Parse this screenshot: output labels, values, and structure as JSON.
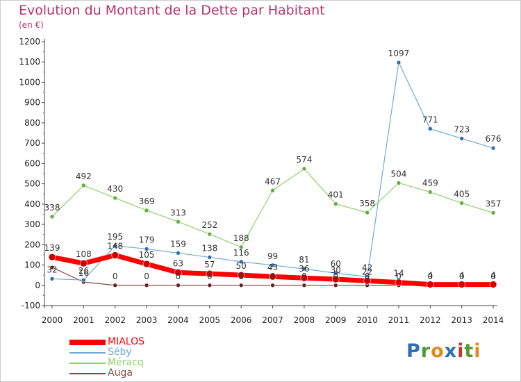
{
  "header": {
    "title": "Evolution du Montant de la Dette par Habitant",
    "subtitle": "(en €)"
  },
  "logo": {
    "text": "Proxiti",
    "letters": [
      {
        "ch": "P",
        "color": "#2b6fb6"
      },
      {
        "ch": "r",
        "color": "#4e9a34"
      },
      {
        "ch": "o",
        "color": "#e08a1e"
      },
      {
        "ch": "x",
        "color": "#2b6fb6"
      },
      {
        "ch": "i",
        "color": "#c0392b"
      },
      {
        "ch": "t",
        "color": "#4e9a34"
      },
      {
        "ch": "i",
        "color": "#e08a1e"
      }
    ]
  },
  "chart_data": {
    "type": "line",
    "title": "Evolution du Montant de la Dette par Habitant",
    "subtitle": "(en €)",
    "xlabel": "",
    "ylabel": "",
    "x": [
      2000,
      2001,
      2002,
      2003,
      2004,
      2005,
      2006,
      2007,
      2008,
      2009,
      2010,
      2011,
      2012,
      2013,
      2014
    ],
    "ylim": [
      -100,
      1200
    ],
    "yticks": [
      -100,
      0,
      100,
      200,
      300,
      400,
      500,
      600,
      700,
      800,
      900,
      1000,
      1100,
      1200
    ],
    "grid": false,
    "legend_position": "bottom-left",
    "series": [
      {
        "name": "MIALOS",
        "color": "#ff0000",
        "marker_color": "#cc0000",
        "line_width": 7,
        "values": [
          139,
          108,
          148,
          105,
          63,
          57,
          50,
          43,
          36,
          30,
          22,
          14,
          4,
          4,
          4
        ],
        "labels": [
          "139",
          "108",
          "148",
          "105",
          "63",
          "57",
          "50",
          "43",
          "36",
          "30",
          "22",
          "14",
          "4",
          "4",
          "4"
        ]
      },
      {
        "name": "Séby",
        "color": "#6fa8d6",
        "marker_color": "#2f6fb0",
        "line_width": 1.2,
        "values": [
          32,
          26,
          195,
          179,
          159,
          138,
          116,
          99,
          81,
          60,
          42,
          1097,
          771,
          723,
          676
        ],
        "labels": [
          "32",
          "26",
          "195",
          "179",
          "159",
          "138",
          "116",
          "99",
          "81",
          "60",
          "42",
          "1097",
          "771",
          "723",
          "676"
        ]
      },
      {
        "name": "Méracq",
        "color": "#8fd16a",
        "marker_color": "#5fb03a",
        "line_width": 1.2,
        "values": [
          338,
          492,
          430,
          369,
          313,
          252,
          188,
          467,
          574,
          401,
          358,
          504,
          459,
          405,
          357
        ],
        "labels": [
          "338",
          "492",
          "430",
          "369",
          "313",
          "252",
          "188",
          "467",
          "574",
          "401",
          "358",
          "504",
          "459",
          "405",
          "357"
        ]
      },
      {
        "name": "Auga",
        "color": "#8a4a4a",
        "marker_color": "#6b1f1f",
        "line_width": 1.2,
        "values": [
          88,
          16,
          0,
          0,
          0,
          0,
          0,
          0,
          0,
          0,
          0,
          0,
          0,
          0,
          0
        ],
        "labels": [
          "",
          "16",
          "0",
          "0",
          "0",
          "0",
          "0",
          "0",
          "0",
          "0",
          "0",
          "0",
          "0",
          "0",
          "0"
        ]
      }
    ]
  }
}
